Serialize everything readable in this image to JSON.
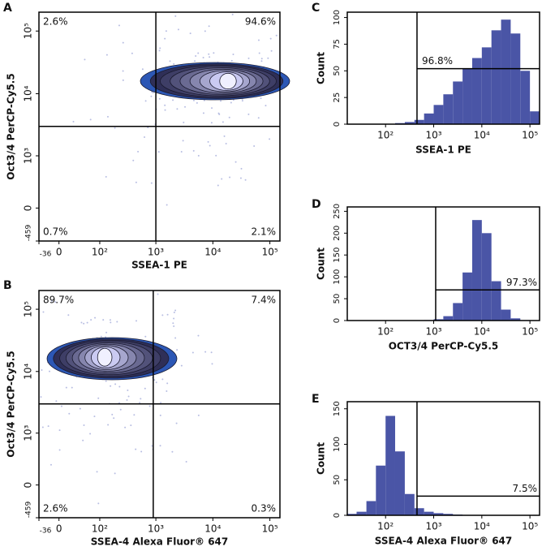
{
  "chart_data": [
    {
      "type": "contour",
      "panel": "A",
      "xlabel": "SSEA-1 PE",
      "ylabel": "Oct3/4 PerCP-Cy5.5",
      "xscale": "asinh",
      "yscale": "asinh",
      "xlim": [
        -36,
        150000
      ],
      "ylim": [
        -459,
        200000
      ],
      "xticks": [
        -36,
        0,
        {
          "value": 100,
          "label": "10²"
        },
        {
          "value": 1000,
          "label": "10³"
        },
        {
          "value": 10000,
          "label": "10⁴"
        },
        {
          "value": 100000,
          "label": "10⁵"
        }
      ],
      "yticks": [
        -459,
        0,
        {
          "value": 1000,
          "label": "10³"
        },
        {
          "value": 10000,
          "label": "10⁴"
        },
        {
          "value": 100000,
          "label": "10⁵"
        }
      ],
      "gates": {
        "x": 1000,
        "y": 3000
      },
      "color": "#2c57b5",
      "quadrants": {
        "values": [
          2.6,
          94.6,
          0.7,
          2.1
        ],
        "value_labels": [
          "2.6%",
          "94.6%",
          "0.7%",
          "2.1%"
        ]
      }
    },
    {
      "type": "contour",
      "panel": "B",
      "xlabel": "SSEA-4 Alexa Fluor® 647",
      "ylabel": "Oct3/4 PerCP-Cy5.5",
      "xscale": "asinh",
      "yscale": "asinh",
      "xlim": [
        -36,
        150000
      ],
      "ylim": [
        -459,
        200000
      ],
      "xticks": [
        -36,
        0,
        {
          "value": 100,
          "label": "10²"
        },
        {
          "value": 1000,
          "label": "10³"
        },
        {
          "value": 10000,
          "label": "10⁴"
        },
        {
          "value": 100000,
          "label": "10⁵"
        }
      ],
      "yticks": [
        -459,
        0,
        {
          "value": 1000,
          "label": "10³"
        },
        {
          "value": 10000,
          "label": "10⁴"
        },
        {
          "value": 100000,
          "label": "10⁵"
        }
      ],
      "gates": {
        "x": 900,
        "y": 3000
      },
      "color": "#2c57b5",
      "quadrants": {
        "values": [
          89.7,
          7.4,
          2.6,
          0.3
        ],
        "value_labels": [
          "89.7%",
          "7.4%",
          "2.6%",
          "0.3%"
        ]
      }
    },
    {
      "type": "histogram",
      "panel": "C",
      "xlabel": "SSEA-1 PE",
      "ylabel": "Count",
      "xscale": "log",
      "xlim": [
        16,
        158489
      ],
      "ylim": [
        0,
        105
      ],
      "xticks": [
        {
          "value": 100,
          "label": "10²"
        },
        {
          "value": 1000,
          "label": "10³"
        },
        {
          "value": 10000,
          "label": "10⁴"
        },
        {
          "value": 100000,
          "label": "10⁵"
        }
      ],
      "yticks": [
        0,
        25,
        50,
        75,
        100
      ],
      "bins": [
        16,
        25,
        40,
        63,
        100,
        158,
        251,
        398,
        631,
        1000,
        1585,
        2512,
        3981,
        6310,
        10000,
        15849,
        25119,
        39811,
        63096,
        100000,
        158489
      ],
      "values": [
        0,
        0,
        0,
        0,
        0,
        1,
        2,
        4,
        10,
        18,
        28,
        40,
        52,
        62,
        72,
        88,
        98,
        85,
        50,
        12
      ],
      "color": "#4a55a6",
      "gate": {
        "x": 450,
        "y": 52,
        "value": 96.8,
        "value_label": "96.8%"
      },
      "gate_label_position": "left"
    },
    {
      "type": "histogram",
      "panel": "D",
      "xlabel": "OCT3/4 PerCP-Cy5.5",
      "ylabel": "Count",
      "xscale": "log",
      "xlim": [
        16,
        158489
      ],
      "ylim": [
        0,
        260
      ],
      "xticks": [
        {
          "value": 100,
          "label": "10²"
        },
        {
          "value": 1000,
          "label": "10³"
        },
        {
          "value": 10000,
          "label": "10⁴"
        },
        {
          "value": 100000,
          "label": "10⁵"
        }
      ],
      "yticks": [
        0,
        50,
        100,
        150,
        200,
        250
      ],
      "bins": [
        16,
        25,
        40,
        63,
        100,
        158,
        251,
        398,
        631,
        1000,
        1585,
        2512,
        3981,
        6310,
        10000,
        15849,
        25119,
        39811,
        63096,
        100000,
        158489
      ],
      "values": [
        0,
        0,
        0,
        0,
        0,
        0,
        0,
        0,
        1,
        3,
        10,
        40,
        110,
        230,
        200,
        90,
        25,
        5,
        1,
        0
      ],
      "color": "#4a55a6",
      "gate": {
        "x": 1100,
        "y": 70,
        "value": 97.3,
        "value_label": "97.3%"
      },
      "gate_label_position": "right"
    },
    {
      "type": "histogram",
      "panel": "E",
      "xlabel": "SSEA-4 Alexa Fluor® 647",
      "ylabel": "Count",
      "xscale": "log",
      "xlim": [
        16,
        158489
      ],
      "ylim": [
        0,
        160
      ],
      "xticks": [
        {
          "value": 100,
          "label": "10²"
        },
        {
          "value": 1000,
          "label": "10³"
        },
        {
          "value": 10000,
          "label": "10⁴"
        },
        {
          "value": 100000,
          "label": "10⁵"
        }
      ],
      "yticks": [
        0,
        50,
        100,
        150
      ],
      "bins": [
        16,
        25,
        40,
        63,
        100,
        158,
        251,
        398,
        631,
        1000,
        1585,
        2512,
        3981,
        6310,
        10000,
        15849,
        25119,
        39811,
        63096,
        100000,
        158489
      ],
      "values": [
        2,
        5,
        20,
        70,
        140,
        90,
        30,
        10,
        5,
        3,
        2,
        1,
        0,
        0,
        0,
        0,
        0,
        0,
        0,
        0
      ],
      "color": "#4a55a6",
      "gate": {
        "x": 450,
        "y": 27,
        "value": 7.5,
        "value_label": "7.5%"
      },
      "gate_label_position": "right"
    }
  ]
}
